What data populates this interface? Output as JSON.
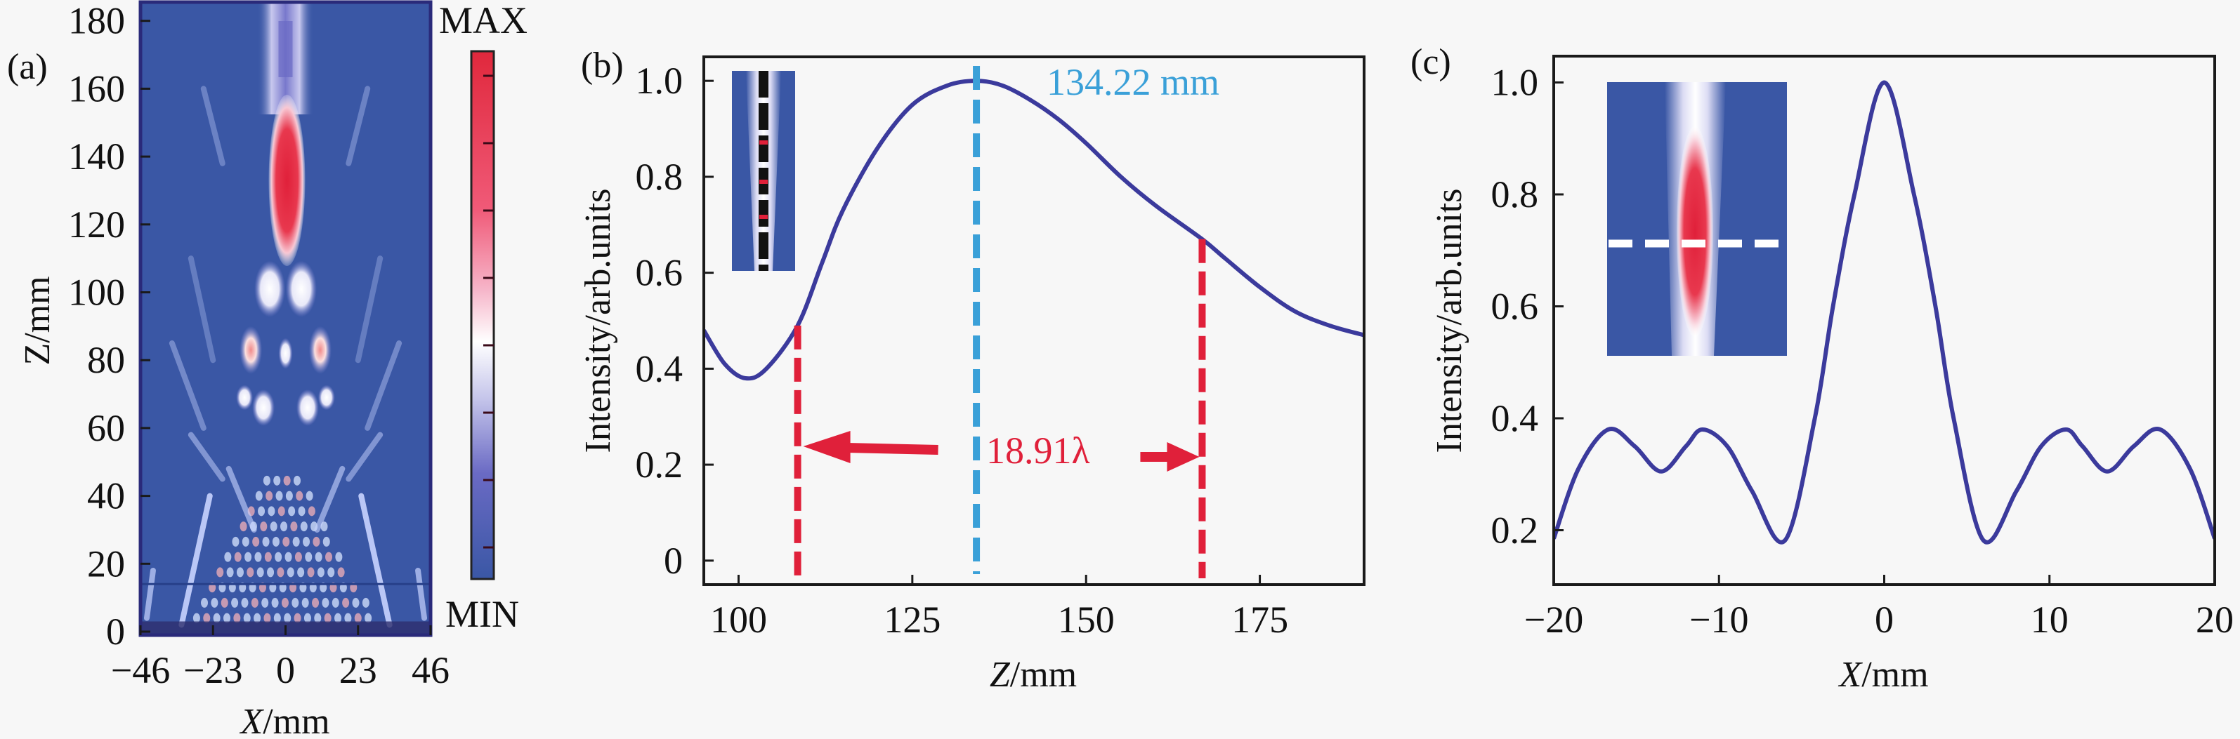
{
  "chart_data": [
    {
      "type": "heatmap",
      "panel_label": "(a)",
      "xlabel_var": "X",
      "xlabel_unit": "/mm",
      "ylabel": "Z/mm",
      "xlim": [
        -46,
        46
      ],
      "ylim": [
        0,
        185
      ],
      "xticks": [
        -46,
        -23,
        0,
        23,
        46
      ],
      "xtick_labels": [
        "−46",
        "−23",
        "0",
        "23",
        "46"
      ],
      "yticks": [
        0,
        20,
        40,
        60,
        80,
        100,
        120,
        140,
        160,
        180
      ],
      "ytick_labels": [
        "0",
        "20",
        "40",
        "60",
        "80",
        "100",
        "120",
        "140",
        "160",
        "180"
      ],
      "colorbar": {
        "max_label": "MAX",
        "min_label": "MIN",
        "colors": [
          "#e0283c",
          "#f05a78",
          "#f6b4c8",
          "#ffffff",
          "#c4c4ea",
          "#6a6ac4",
          "#3a57a5"
        ]
      },
      "background_color": "#3a57a5",
      "grid": false
    },
    {
      "type": "line",
      "panel_label": "(b)",
      "xlabel_var": "Z",
      "xlabel_unit": "/mm",
      "ylabel": "Intensity/arb.units",
      "xlim": [
        95,
        190
      ],
      "ylim": [
        -0.05,
        1.05
      ],
      "xticks": [
        100,
        125,
        150,
        175
      ],
      "xtick_labels": [
        "100",
        "125",
        "150",
        "175"
      ],
      "yticks": [
        0,
        0.2,
        0.4,
        0.6,
        0.8,
        1.0
      ],
      "ytick_labels": [
        "0",
        "0.2",
        "0.4",
        "0.6",
        "0.8",
        "1.0"
      ],
      "grid": false,
      "series": [
        {
          "color": "#3b3a9c",
          "x": [
            95,
            98,
            101,
            104,
            108.5,
            112,
            115,
            120,
            125,
            130,
            134.22,
            138,
            142,
            146,
            150,
            155,
            160,
            166.7,
            170,
            175,
            180,
            185,
            190
          ],
          "y": [
            0.48,
            0.41,
            0.38,
            0.4,
            0.49,
            0.62,
            0.73,
            0.86,
            0.95,
            0.99,
            1.0,
            0.99,
            0.96,
            0.92,
            0.87,
            0.8,
            0.74,
            0.67,
            0.63,
            0.57,
            0.52,
            0.49,
            0.47
          ]
        }
      ],
      "annotations": {
        "peak_position": 134.22,
        "peak_label": "134.22 mm",
        "peak_color": "#3aa0d8",
        "width_bounds": [
          108.5,
          166.7
        ],
        "width_label": "18.91λ",
        "width_color": "#e0203a"
      },
      "inset": {
        "colors": [
          "#3a57a5",
          "#ffffff",
          "#111111",
          "#e0203a"
        ]
      }
    },
    {
      "type": "line",
      "panel_label": "(c)",
      "xlabel_var": "X",
      "xlabel_unit": "/mm",
      "ylabel": "Intensity/arb.units",
      "xlim": [
        -20,
        20
      ],
      "ylim": [
        0.1,
        1.05
      ],
      "xticks": [
        -20,
        -10,
        0,
        10,
        20
      ],
      "xtick_labels": [
        "−20",
        "−10",
        "0",
        "10",
        "20"
      ],
      "yticks": [
        0.2,
        0.4,
        0.6,
        0.8,
        1.0
      ],
      "ytick_labels": [
        "0.2",
        "0.4",
        "0.6",
        "0.8",
        "1.0"
      ],
      "grid": false,
      "series": [
        {
          "color": "#3b3a9c",
          "x": [
            -20,
            -18.5,
            -16.7,
            -15.1,
            -13.5,
            -12,
            -11,
            -9.5,
            -8,
            -6,
            -4.2,
            -3.1,
            -1.8,
            0,
            1.8,
            3.1,
            4.2,
            6,
            8,
            9.5,
            11,
            12,
            13.5,
            15.1,
            16.7,
            18.5,
            20
          ],
          "y": [
            0.185,
            0.31,
            0.38,
            0.35,
            0.305,
            0.35,
            0.38,
            0.35,
            0.27,
            0.182,
            0.4,
            0.6,
            0.8,
            1.0,
            0.8,
            0.6,
            0.4,
            0.182,
            0.27,
            0.35,
            0.38,
            0.35,
            0.305,
            0.35,
            0.38,
            0.31,
            0.185
          ]
        }
      ],
      "inset": {
        "colors": [
          "#3a57a5",
          "#ffffff",
          "#e0203a"
        ]
      }
    }
  ]
}
